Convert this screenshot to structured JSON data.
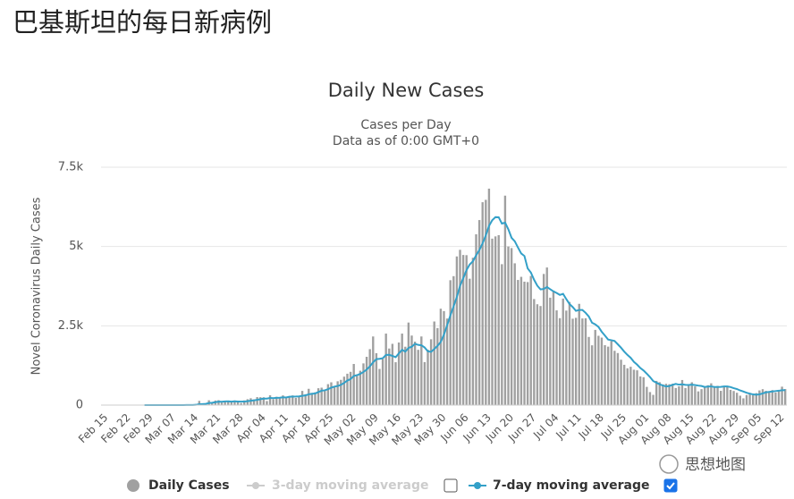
{
  "page_title": "巴基斯坦的每日新病例",
  "watermark": "思想地图",
  "chart_data": {
    "type": "bar",
    "title": "Daily New Cases",
    "subtitle": [
      "Cases per Day",
      "Data as of 0:00 GMT+0"
    ],
    "y_label": "Novel Coronavirus Daily Cases",
    "ylim": [
      0,
      7500
    ],
    "yticks": [
      0,
      {
        "value": 2500,
        "label": "2.5k"
      },
      {
        "value": 5000,
        "label": "5k"
      },
      {
        "value": 7500,
        "label": "7.5k"
      }
    ],
    "grid": true,
    "categories": [
      "Feb 15",
      null,
      null,
      null,
      null,
      null,
      null,
      "Feb 22",
      null,
      null,
      null,
      null,
      null,
      null,
      "Feb 29",
      null,
      null,
      null,
      null,
      null,
      null,
      "Mar 07",
      null,
      null,
      null,
      null,
      null,
      null,
      "Mar 14",
      null,
      null,
      null,
      null,
      null,
      null,
      "Mar 21",
      null,
      null,
      null,
      null,
      null,
      null,
      "Mar 28",
      null,
      null,
      null,
      null,
      null,
      null,
      "Apr 04",
      null,
      null,
      null,
      null,
      null,
      null,
      "Apr 11",
      null,
      null,
      null,
      null,
      null,
      null,
      "Apr 18",
      null,
      null,
      null,
      null,
      null,
      null,
      "Apr 25",
      null,
      null,
      null,
      null,
      null,
      null,
      "May 02",
      null,
      null,
      null,
      null,
      null,
      null,
      "May 09",
      null,
      null,
      null,
      null,
      null,
      null,
      "May 16",
      null,
      null,
      null,
      null,
      null,
      null,
      "May 23",
      null,
      null,
      null,
      null,
      null,
      null,
      "May 30",
      null,
      null,
      null,
      null,
      null,
      null,
      "Jun 06",
      null,
      null,
      null,
      null,
      null,
      null,
      "Jun 13",
      null,
      null,
      null,
      null,
      null,
      null,
      "Jun 20",
      null,
      null,
      null,
      null,
      null,
      null,
      "Jun 27",
      null,
      null,
      null,
      null,
      null,
      null,
      "Jul 04",
      null,
      null,
      null,
      null,
      null,
      null,
      "Jul 11",
      null,
      null,
      null,
      null,
      null,
      null,
      "Jul 18",
      null,
      null,
      null,
      null,
      null,
      null,
      "Jul 25",
      null,
      null,
      null,
      null,
      null,
      null,
      "Aug 01",
      null,
      null,
      null,
      null,
      null,
      null,
      "Aug 08",
      null,
      null,
      null,
      null,
      null,
      null,
      "Aug 15",
      null,
      null,
      null,
      null,
      null,
      null,
      "Aug 22",
      null,
      null,
      null,
      null,
      null,
      null,
      "Aug 29",
      null,
      null,
      null,
      null,
      null,
      null,
      "Sep 05",
      null,
      null,
      null,
      null,
      null,
      null,
      "Sep 12",
      null,
      null
    ],
    "series": [
      {
        "name": "Daily Cases",
        "type": "bar",
        "color": "#a0a0a0",
        "values": [
          0,
          0,
          0,
          0,
          0,
          0,
          0,
          0,
          0,
          0,
          0,
          2,
          0,
          0,
          2,
          0,
          0,
          1,
          0,
          0,
          1,
          0,
          0,
          0,
          1,
          1,
          1,
          8,
          7,
          32,
          133,
          49,
          56,
          152,
          80,
          144,
          155,
          80,
          101,
          114,
          97,
          146,
          99,
          64,
          148,
          185,
          216,
          181,
          252,
          249,
          248,
          128,
          309,
          186,
          263,
          249,
          306,
          236,
          280,
          306,
          228,
          256,
          448,
          343,
          514,
          386,
          404,
          532,
          550,
          475,
          660,
          719,
          603,
          751,
          796,
          897,
          990,
          1049,
          1297,
          919,
          1083,
          1315,
          1523,
          1764,
          2164,
          1637,
          1140,
          1452,
          2255,
          1784,
          1932,
          1352,
          1974,
          2255,
          1841,
          2603,
          2193,
          2000,
          1743,
          2164,
          1356,
          1748,
          2076,
          2636,
          2429,
          3039,
          2964,
          2729,
          3938,
          4065,
          4688,
          4896,
          4734,
          4728,
          3985,
          4646,
          5385,
          5834,
          6397,
          6472,
          6825,
          5248,
          5319,
          5358,
          4443,
          6604,
          5000,
          4951,
          4471,
          3946,
          4044,
          3892,
          3879,
          4072,
          3344,
          3180,
          3124,
          4135,
          4339,
          3387,
          3603,
          2987,
          2741,
          3359,
          2980,
          3252,
          2724,
          2752,
          3193,
          2732,
          2739,
          2149,
          1885,
          2371,
          2186,
          2128,
          1891,
          1843,
          2019,
          1712,
          1641,
          1431,
          1271,
          1160,
          1209,
          1116,
          1096,
          903,
          880,
          575,
          411,
          323,
          763,
          722,
          653,
          672,
          659,
          674,
          539,
          592,
          791,
          539,
          644,
          720,
          590,
          432,
          503,
          571,
          626,
          687,
          582,
          606,
          450,
          591,
          584,
          481,
          445,
          389,
          297,
          213,
          319,
          385,
          312,
          378,
          463,
          502,
          450,
          427,
          473,
          398,
          461,
          581,
          506
        ]
      },
      {
        "name": "7-day moving average",
        "type": "line",
        "color": "#33a0c8",
        "checkbox": true,
        "values": [
          null,
          null,
          null,
          null,
          null,
          null,
          null,
          null,
          null,
          null,
          null,
          null,
          null,
          0,
          0,
          0,
          0,
          0,
          0,
          1,
          1,
          1,
          0,
          0,
          0,
          1,
          2,
          3,
          4,
          9,
          27,
          33,
          40,
          62,
          74,
          92,
          110,
          107,
          115,
          119,
          111,
          119,
          114,
          110,
          111,
          124,
          137,
          150,
          166,
          187,
          203,
          205,
          224,
          219,
          230,
          233,
          245,
          240,
          264,
          268,
          270,
          275,
          293,
          307,
          340,
          355,
          367,
          410,
          454,
          467,
          501,
          550,
          584,
          602,
          638,
          700,
          774,
          821,
          920,
          944,
          985,
          1045,
          1121,
          1223,
          1347,
          1449,
          1458,
          1477,
          1582,
          1585,
          1551,
          1511,
          1630,
          1745,
          1685,
          1802,
          1840,
          1932,
          1899,
          1886,
          1817,
          1695,
          1678,
          1769,
          1867,
          1992,
          2222,
          2517,
          2830,
          3114,
          3407,
          3760,
          4002,
          4254,
          4433,
          4535,
          4723,
          4887,
          5101,
          5350,
          5649,
          5830,
          5926,
          5922,
          5723,
          5753,
          5542,
          5275,
          5164,
          4968,
          4780,
          4701,
          4312,
          4179,
          3950,
          3765,
          3648,
          3661,
          3725,
          3654,
          3587,
          3536,
          3474,
          3507,
          3342,
          3187,
          3092,
          2971,
          3000,
          2999,
          2910,
          2792,
          2596,
          2546,
          2465,
          2313,
          2193,
          2065,
          2046,
          2021,
          1917,
          1809,
          1687,
          1582,
          1492,
          1363,
          1275,
          1169,
          1091,
          991,
          884,
          758,
          707,
          654,
          618,
          588,
          600,
          638,
          669,
          644,
          654,
          638,
          634,
          643,
          631,
          615,
          603,
          571,
          584,
          590,
          570,
          572,
          575,
          588,
          589,
          569,
          534,
          507,
          462,
          429,
          390,
          361,
          337,
          328,
          338,
          367,
          401,
          417,
          429,
          442,
          453,
          470,
          471
        ]
      }
    ],
    "hidden_series": [
      {
        "name": "3-day moving average",
        "color": "#cccccc",
        "checkbox": false
      }
    ]
  }
}
